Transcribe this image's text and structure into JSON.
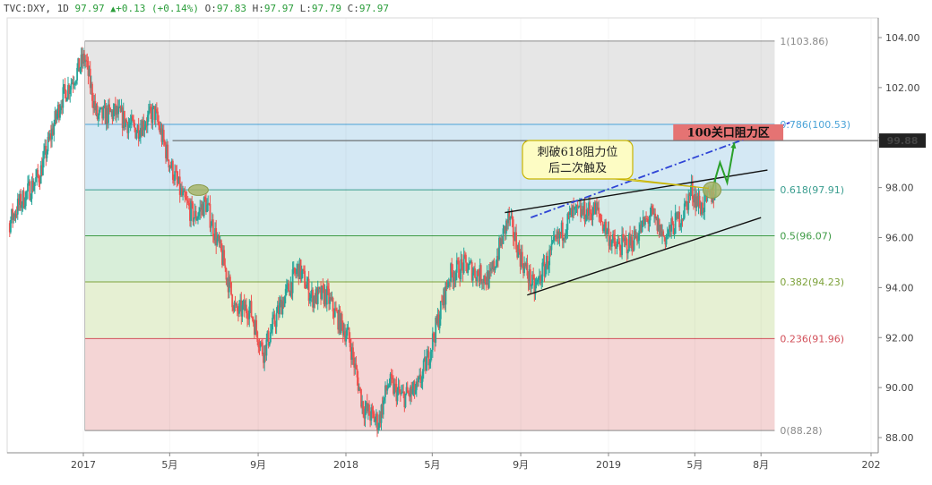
{
  "header": {
    "symbol": "TVC:DXY",
    "interval": "1D",
    "last": "97.97",
    "change": "+0.13",
    "change_pct": "(+0.14%)",
    "open_label": "O:",
    "open": "97.83",
    "high_label": "H:",
    "high": "97.97",
    "low_label": "L:",
    "low": "97.79",
    "close_label": "C:",
    "close": "97.97"
  },
  "chart_data": {
    "type": "candlestick",
    "ylim": [
      87.5,
      105.0
    ],
    "y_ticks": [
      "104.00",
      "102.00",
      "100.00",
      "98.00",
      "96.00",
      "94.00",
      "92.00",
      "90.00",
      "88.00"
    ],
    "y_tick_values": [
      104,
      102,
      100,
      98,
      96,
      94,
      92,
      90,
      88
    ],
    "x_ticks": [
      "2017",
      "5月",
      "9月",
      "2018",
      "5月",
      "9月",
      "2019",
      "5月",
      "8月",
      "202"
    ],
    "x_tick_dates": [
      "2017-01-01",
      "2017-05-01",
      "2017-09-01",
      "2018-01-01",
      "2018-05-01",
      "2018-09-01",
      "2019-01-01",
      "2019-05-01",
      "2019-08-01",
      "2020-01-01"
    ],
    "current_price": "99.88",
    "current_price_value": 99.88,
    "fibonacci": {
      "start_date": "2017-01-03",
      "end_date": "2019-08-20",
      "levels": [
        {
          "label": "1(103.86)",
          "value": 103.86,
          "color": "#8a8a8a",
          "fill": "#e6e6e6"
        },
        {
          "label": "0.786(100.53)",
          "value": 100.53,
          "color": "#4aa3d8",
          "fill": "#d4e8f4"
        },
        {
          "label": "0.618(97.91)",
          "value": 97.91,
          "color": "#3a9d8f",
          "fill": "#d6ece8"
        },
        {
          "label": "0.5(96.07)",
          "value": 96.07,
          "color": "#3f9b46",
          "fill": "#d8eed9"
        },
        {
          "label": "0.382(94.23)",
          "value": 94.23,
          "color": "#7da23a",
          "fill": "#e6f0d3"
        },
        {
          "label": "0.236(91.96)",
          "value": 91.96,
          "color": "#d2505a",
          "fill": "#f4d5d5"
        },
        {
          "label": "0(88.28)",
          "value": 88.28,
          "color": "#8a8a8a",
          "fill": null
        }
      ]
    },
    "price_path": [
      [
        "2016-09-01",
        95.5
      ],
      [
        "2016-10-01",
        97.2
      ],
      [
        "2016-11-01",
        98.5
      ],
      [
        "2016-12-01",
        101.5
      ],
      [
        "2017-01-03",
        103.2
      ],
      [
        "2017-01-20",
        100.8
      ],
      [
        "2017-02-15",
        101.0
      ],
      [
        "2017-03-15",
        100.3
      ],
      [
        "2017-04-10",
        101.0
      ],
      [
        "2017-05-01",
        99.0
      ],
      [
        "2017-05-20",
        97.5
      ],
      [
        "2017-06-05",
        96.8
      ],
      [
        "2017-06-20",
        97.4
      ],
      [
        "2017-07-15",
        95.0
      ],
      [
        "2017-08-01",
        93.0
      ],
      [
        "2017-08-20",
        93.2
      ],
      [
        "2017-09-08",
        91.4
      ],
      [
        "2017-10-01",
        93.2
      ],
      [
        "2017-10-27",
        94.8
      ],
      [
        "2017-11-15",
        93.6
      ],
      [
        "2017-12-05",
        93.7
      ],
      [
        "2017-12-20",
        92.8
      ],
      [
        "2018-01-05",
        92.0
      ],
      [
        "2018-01-25",
        89.2
      ],
      [
        "2018-02-15",
        88.6
      ],
      [
        "2018-03-01",
        90.2
      ],
      [
        "2018-03-20",
        89.6
      ],
      [
        "2018-04-10",
        89.9
      ],
      [
        "2018-04-25",
        91.2
      ],
      [
        "2018-05-10",
        92.8
      ],
      [
        "2018-05-25",
        94.5
      ],
      [
        "2018-06-15",
        94.9
      ],
      [
        "2018-07-01",
        94.6
      ],
      [
        "2018-07-20",
        94.3
      ],
      [
        "2018-08-15",
        96.8
      ],
      [
        "2018-09-01",
        95.2
      ],
      [
        "2018-09-20",
        93.9
      ],
      [
        "2018-10-15",
        95.5
      ],
      [
        "2018-11-10",
        96.9
      ],
      [
        "2018-12-15",
        97.1
      ],
      [
        "2019-01-10",
        95.6
      ],
      [
        "2019-02-01",
        95.8
      ],
      [
        "2019-03-01",
        96.9
      ],
      [
        "2019-03-20",
        96.0
      ],
      [
        "2019-04-15",
        97.0
      ],
      [
        "2019-04-26",
        97.9
      ],
      [
        "2019-05-10",
        97.2
      ],
      [
        "2019-05-30",
        97.9
      ]
    ],
    "lines": [
      {
        "name": "upper-trendline",
        "color": "#111111",
        "style": "solid",
        "from": [
          "2018-08-10",
          97.0
        ],
        "to": [
          "2019-08-10",
          98.7
        ]
      },
      {
        "name": "lower-trendline",
        "color": "#111111",
        "style": "solid",
        "from": [
          "2018-09-10",
          93.7
        ],
        "to": [
          "2019-08-01",
          96.8
        ]
      },
      {
        "name": "projection-dashdot",
        "color": "#2e44d6",
        "style": "dashdot",
        "from": [
          "2018-09-15",
          96.8
        ],
        "to": [
          "2019-09-10",
          100.6
        ]
      },
      {
        "name": "projection-arrow",
        "color": "#2aa12a",
        "style": "solid",
        "points": [
          [
            "2019-05-25",
            97.9
          ],
          [
            "2019-06-05",
            99.0
          ],
          [
            "2019-06-15",
            98.2
          ],
          [
            "2019-06-25",
            99.8
          ]
        ]
      }
    ],
    "markers": [
      {
        "name": "touch-2017",
        "date": "2017-06-10",
        "value": 97.9
      },
      {
        "name": "touch-2019",
        "date": "2019-05-25",
        "value": 97.9
      }
    ],
    "annotations": [
      {
        "name": "breakout-note",
        "lines": [
          "刺破618阻力位",
          "后二次触及"
        ]
      },
      {
        "name": "resistance-zone",
        "text": "100关口阻力区",
        "from": [
          "2019-04-01",
          100.53
        ],
        "to": [
          "2019-09-01",
          99.9
        ]
      }
    ],
    "horizontal_line": {
      "name": "prior-high-line",
      "start_date": "2017-05-05",
      "value": 99.88
    }
  },
  "colors": {
    "up": "#26a69a",
    "down": "#ef5350",
    "current_price_bg": "#222222",
    "current_price_text": "#ffffff",
    "resistance_fill": "#e57373",
    "note_fill": "#fdfcc4",
    "note_border": "#c8b400",
    "marker_fill": "#a7b56a"
  }
}
